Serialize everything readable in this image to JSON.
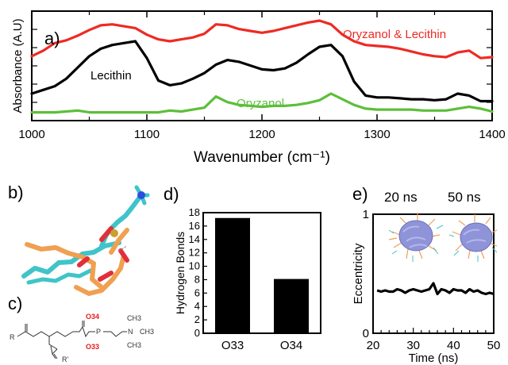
{
  "colors": {
    "oryzanol_lecithin": "#ee2a24",
    "lecithin": "#000000",
    "oryzanol": "#5cbf3a",
    "bar": "#000000",
    "micelle": "#8f93d8",
    "tail": "#f0a050",
    "headgroup": "#3fc4c9"
  },
  "panels": {
    "a": "a)",
    "b": "b)",
    "c": "c)",
    "d": "d)",
    "e": "e)"
  },
  "chart_data": [
    {
      "panel": "a",
      "type": "line",
      "xlabel": "Wavenumber (cm⁻¹)",
      "ylabel": "Absorbance (A.U)",
      "xlim": [
        1000,
        1400
      ],
      "xticks": [
        "1000",
        "1100",
        "1200",
        "1300",
        "1400"
      ],
      "series": [
        {
          "name": "Oryzanol & Lecithin",
          "color": "#ee2a24",
          "x": [
            1000,
            1010,
            1020,
            1030,
            1040,
            1050,
            1060,
            1070,
            1080,
            1090,
            1100,
            1110,
            1120,
            1130,
            1140,
            1150,
            1160,
            1170,
            1180,
            1190,
            1200,
            1210,
            1220,
            1230,
            1240,
            1250,
            1260,
            1270,
            1280,
            1290,
            1300,
            1310,
            1320,
            1330,
            1340,
            1350,
            1360,
            1370,
            1380,
            1390,
            1400
          ],
          "y": [
            0.62,
            0.68,
            0.76,
            0.79,
            0.84,
            0.9,
            0.95,
            0.96,
            0.94,
            0.92,
            0.85,
            0.8,
            0.78,
            0.8,
            0.82,
            0.86,
            0.96,
            0.95,
            0.91,
            0.89,
            0.87,
            0.89,
            0.92,
            0.95,
            0.98,
            1.0,
            0.96,
            0.85,
            0.78,
            0.74,
            0.73,
            0.72,
            0.7,
            0.67,
            0.64,
            0.62,
            0.61,
            0.66,
            0.68,
            0.6,
            0.61
          ]
        },
        {
          "name": "Lecithin",
          "color": "#000000",
          "x": [
            1000,
            1010,
            1020,
            1030,
            1040,
            1050,
            1060,
            1070,
            1080,
            1090,
            1100,
            1110,
            1120,
            1130,
            1140,
            1150,
            1160,
            1170,
            1180,
            1190,
            1200,
            1210,
            1220,
            1230,
            1240,
            1250,
            1260,
            1270,
            1280,
            1290,
            1300,
            1310,
            1320,
            1330,
            1340,
            1350,
            1360,
            1370,
            1380,
            1390,
            1400
          ],
          "y": [
            0.22,
            0.26,
            0.3,
            0.38,
            0.5,
            0.62,
            0.7,
            0.74,
            0.76,
            0.78,
            0.6,
            0.36,
            0.31,
            0.33,
            0.38,
            0.44,
            0.53,
            0.58,
            0.56,
            0.52,
            0.48,
            0.47,
            0.49,
            0.55,
            0.64,
            0.72,
            0.74,
            0.62,
            0.35,
            0.2,
            0.18,
            0.18,
            0.17,
            0.16,
            0.16,
            0.15,
            0.16,
            0.22,
            0.2,
            0.14,
            0.14
          ]
        },
        {
          "name": "Oryzanol",
          "color": "#5cbf3a",
          "x": [
            1000,
            1010,
            1020,
            1030,
            1040,
            1050,
            1060,
            1070,
            1080,
            1090,
            1100,
            1110,
            1120,
            1130,
            1140,
            1150,
            1160,
            1170,
            1180,
            1190,
            1200,
            1210,
            1220,
            1230,
            1240,
            1250,
            1260,
            1270,
            1280,
            1290,
            1300,
            1310,
            1320,
            1330,
            1340,
            1350,
            1360,
            1370,
            1380,
            1390,
            1400
          ],
          "y": [
            0.02,
            0.02,
            0.02,
            0.03,
            0.04,
            0.02,
            0.02,
            0.02,
            0.02,
            0.02,
            0.02,
            0.02,
            0.04,
            0.03,
            0.05,
            0.07,
            0.19,
            0.13,
            0.1,
            0.09,
            0.08,
            0.09,
            0.09,
            0.1,
            0.12,
            0.15,
            0.22,
            0.16,
            0.1,
            0.06,
            0.05,
            0.05,
            0.05,
            0.05,
            0.04,
            0.04,
            0.04,
            0.06,
            0.08,
            0.06,
            0.03
          ]
        }
      ]
    },
    {
      "panel": "d",
      "type": "bar",
      "ylabel": "Hydrogen Bonds",
      "ylim": [
        0,
        18
      ],
      "yticks": [
        "0",
        "2",
        "4",
        "6",
        "8",
        "10",
        "12",
        "14",
        "16",
        "18"
      ],
      "categories": [
        "O33",
        "O34"
      ],
      "values": [
        17.2,
        8.1
      ]
    },
    {
      "panel": "e",
      "type": "line",
      "xlabel": "Time (ns)",
      "ylabel": "Eccentricity",
      "xlim": [
        20,
        50
      ],
      "ylim": [
        0,
        1
      ],
      "xticks": [
        "20",
        "30",
        "40",
        "50"
      ],
      "yticks": [
        "0",
        "1"
      ],
      "annotations": [
        "20 ns",
        "50 ns"
      ],
      "series": [
        {
          "name": "",
          "color": "#000000",
          "x": [
            21,
            22,
            23,
            24,
            25,
            26,
            27,
            28,
            29,
            30,
            31,
            32,
            33,
            34,
            35,
            36,
            37,
            38,
            39,
            40,
            41,
            42,
            43,
            44,
            45,
            46,
            47,
            48,
            49,
            50
          ],
          "y": [
            0.36,
            0.35,
            0.36,
            0.35,
            0.35,
            0.37,
            0.36,
            0.34,
            0.36,
            0.37,
            0.36,
            0.35,
            0.36,
            0.37,
            0.42,
            0.33,
            0.37,
            0.36,
            0.34,
            0.37,
            0.36,
            0.36,
            0.34,
            0.37,
            0.35,
            0.36,
            0.34,
            0.33,
            0.34,
            0.33
          ]
        }
      ]
    }
  ],
  "structure": {
    "r1": "R",
    "r2": "R'",
    "o34": "O34",
    "o33": "O33",
    "p": "P",
    "n": "N",
    "ch3": "CH3"
  }
}
